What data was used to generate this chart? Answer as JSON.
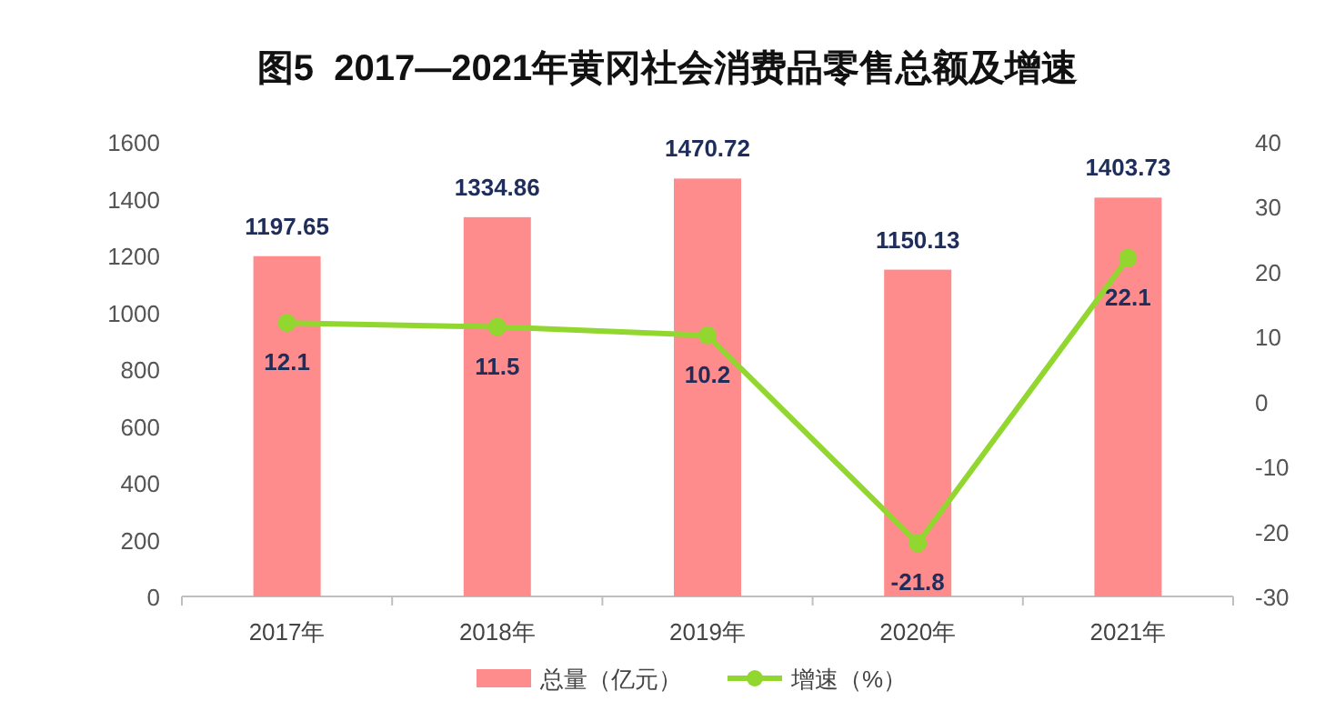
{
  "chart_data": {
    "type": "bar",
    "title": "图5  2017—2021年黄冈社会消费品零售总额及增速",
    "categories": [
      "2017年",
      "2018年",
      "2019年",
      "2020年",
      "2021年"
    ],
    "series": [
      {
        "name": "总量（亿元）",
        "color": "#ff8c8c",
        "values": [
          1197.65,
          1334.86,
          1470.72,
          1150.13,
          1403.73
        ]
      },
      {
        "name": "增速（%）",
        "type": "line",
        "axis": "y2",
        "color": "#92d630",
        "values": [
          12.1,
          11.5,
          10.2,
          -21.8,
          22.1
        ]
      }
    ],
    "ylim": [
      0,
      1600
    ],
    "yticks": [
      0,
      200,
      400,
      600,
      800,
      1000,
      1200,
      1400,
      1600
    ],
    "y2lim": [
      -30,
      40
    ],
    "y2ticks": [
      -30,
      -20,
      -10,
      0,
      10,
      20,
      30,
      40
    ],
    "marker": "circle",
    "data_labels": true,
    "legend": "bottom",
    "grid": false
  }
}
